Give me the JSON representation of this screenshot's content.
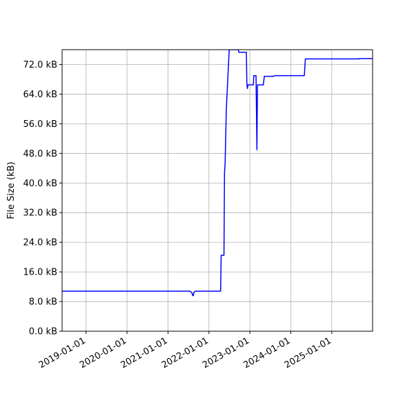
{
  "chart_data": {
    "type": "line",
    "title": "",
    "xlabel": "",
    "ylabel": "File Size (kB)",
    "xlim": [
      "2018-06-01",
      "2025-12-31"
    ],
    "ylim": [
      0,
      76
    ],
    "x_ticks": [
      "2019-01-01",
      "2020-01-01",
      "2021-01-01",
      "2022-01-01",
      "2023-01-01",
      "2024-01-01",
      "2025-01-01"
    ],
    "y_ticks": [
      0,
      8,
      16,
      24,
      32,
      40,
      48,
      56,
      64,
      72
    ],
    "y_tick_labels": [
      "0.0 kB",
      "8.0 kB",
      "16.0 kB",
      "24.0 kB",
      "32.0 kB",
      "40.0 kB",
      "48.0 kB",
      "56.0 kB",
      "64.0 kB",
      "72.0 kB"
    ],
    "grid": true,
    "line_color": "#0000ff",
    "series": [
      {
        "x": [
          "2018-06-01",
          "2021-07-15",
          "2021-08-01",
          "2021-08-10",
          "2021-08-15",
          "2021-08-18",
          "2021-09-01",
          "2022-04-15",
          "2022-04-20",
          "2022-05-15",
          "2022-05-20",
          "2022-05-25",
          "2022-06-05",
          "2022-07-01",
          "2022-07-15",
          "2022-09-20",
          "2022-09-25",
          "2022-12-01",
          "2022-12-05",
          "2022-12-10",
          "2022-12-15",
          "2022-12-20",
          "2023-02-01",
          "2023-02-05",
          "2023-02-25",
          "2023-03-05",
          "2023-03-10",
          "2023-03-15",
          "2023-05-01",
          "2023-05-10",
          "2023-08-01",
          "2023-08-10",
          "2024-05-01",
          "2024-05-10",
          "2025-09-01",
          "2025-09-05",
          "2025-12-31"
        ],
        "y": [
          10.8,
          10.8,
          10.4,
          9.6,
          9.6,
          10.4,
          10.8,
          10.8,
          20.5,
          20.5,
          43.0,
          45.0,
          60.0,
          76.0,
          76.0,
          76.0,
          75.3,
          75.3,
          67.0,
          65.5,
          66.5,
          66.5,
          66.5,
          69.0,
          69.0,
          49.0,
          66.5,
          66.5,
          66.5,
          68.8,
          68.8,
          69.0,
          69.0,
          73.5,
          73.5,
          73.6,
          73.6
        ]
      }
    ]
  }
}
